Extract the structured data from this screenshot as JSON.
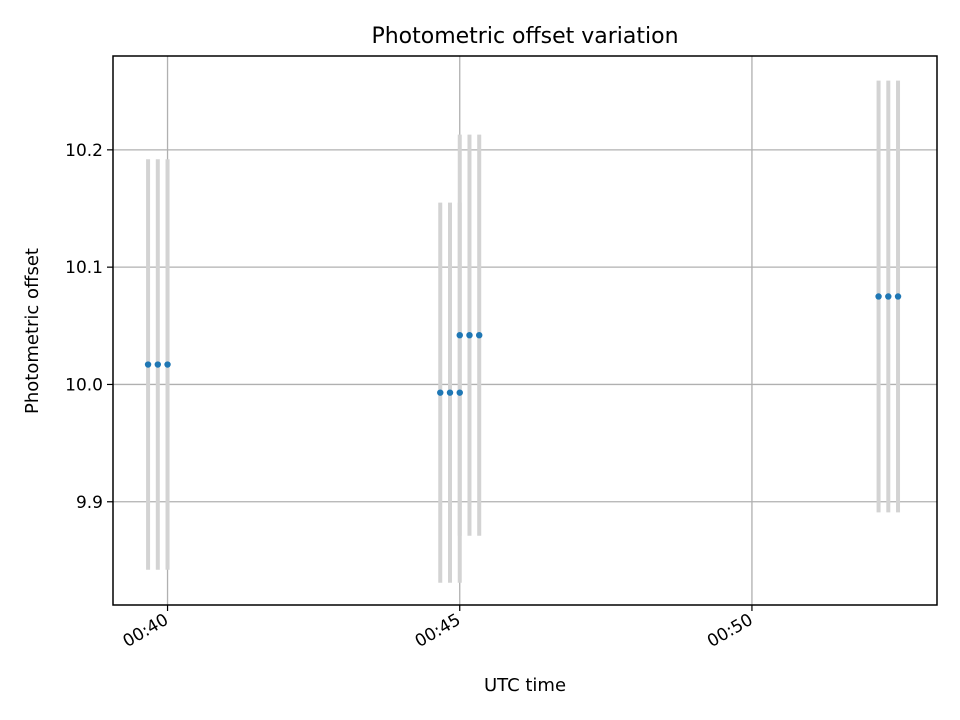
{
  "chart_data": {
    "type": "scatter",
    "title": "Photometric offset variation",
    "xlabel": "UTC time",
    "ylabel": "Photometric offset",
    "x_axis_type": "time",
    "x_tick_labels": [
      "00:40",
      "00:45",
      "00:50"
    ],
    "y_tick_labels": [
      "9.9",
      "10.0",
      "10.1",
      "10.2"
    ],
    "xlim": [
      "00:39:04",
      "00:53:10"
    ],
    "ylim": [
      9.812,
      10.28
    ],
    "grid": true,
    "series": [
      {
        "color": "#1f77b4",
        "errorbar_color": "#d3d3d3",
        "points": [
          {
            "x": "00:39:40",
            "y": 10.017,
            "yerr": 0.175
          },
          {
            "x": "00:39:50",
            "y": 10.017,
            "yerr": 0.175
          },
          {
            "x": "00:40:00",
            "y": 10.017,
            "yerr": 0.175
          },
          {
            "x": "00:44:40",
            "y": 9.993,
            "yerr": 0.162
          },
          {
            "x": "00:44:50",
            "y": 9.993,
            "yerr": 0.162
          },
          {
            "x": "00:45:00",
            "y": 9.993,
            "yerr": 0.162
          },
          {
            "x": "00:45:00",
            "y": 10.042,
            "yerr": 0.171
          },
          {
            "x": "00:45:10",
            "y": 10.042,
            "yerr": 0.171
          },
          {
            "x": "00:45:20",
            "y": 10.042,
            "yerr": 0.171
          },
          {
            "x": "00:52:10",
            "y": 10.075,
            "yerr": 0.184
          },
          {
            "x": "00:52:20",
            "y": 10.075,
            "yerr": 0.184
          },
          {
            "x": "00:52:30",
            "y": 10.075,
            "yerr": 0.184
          }
        ]
      }
    ]
  }
}
